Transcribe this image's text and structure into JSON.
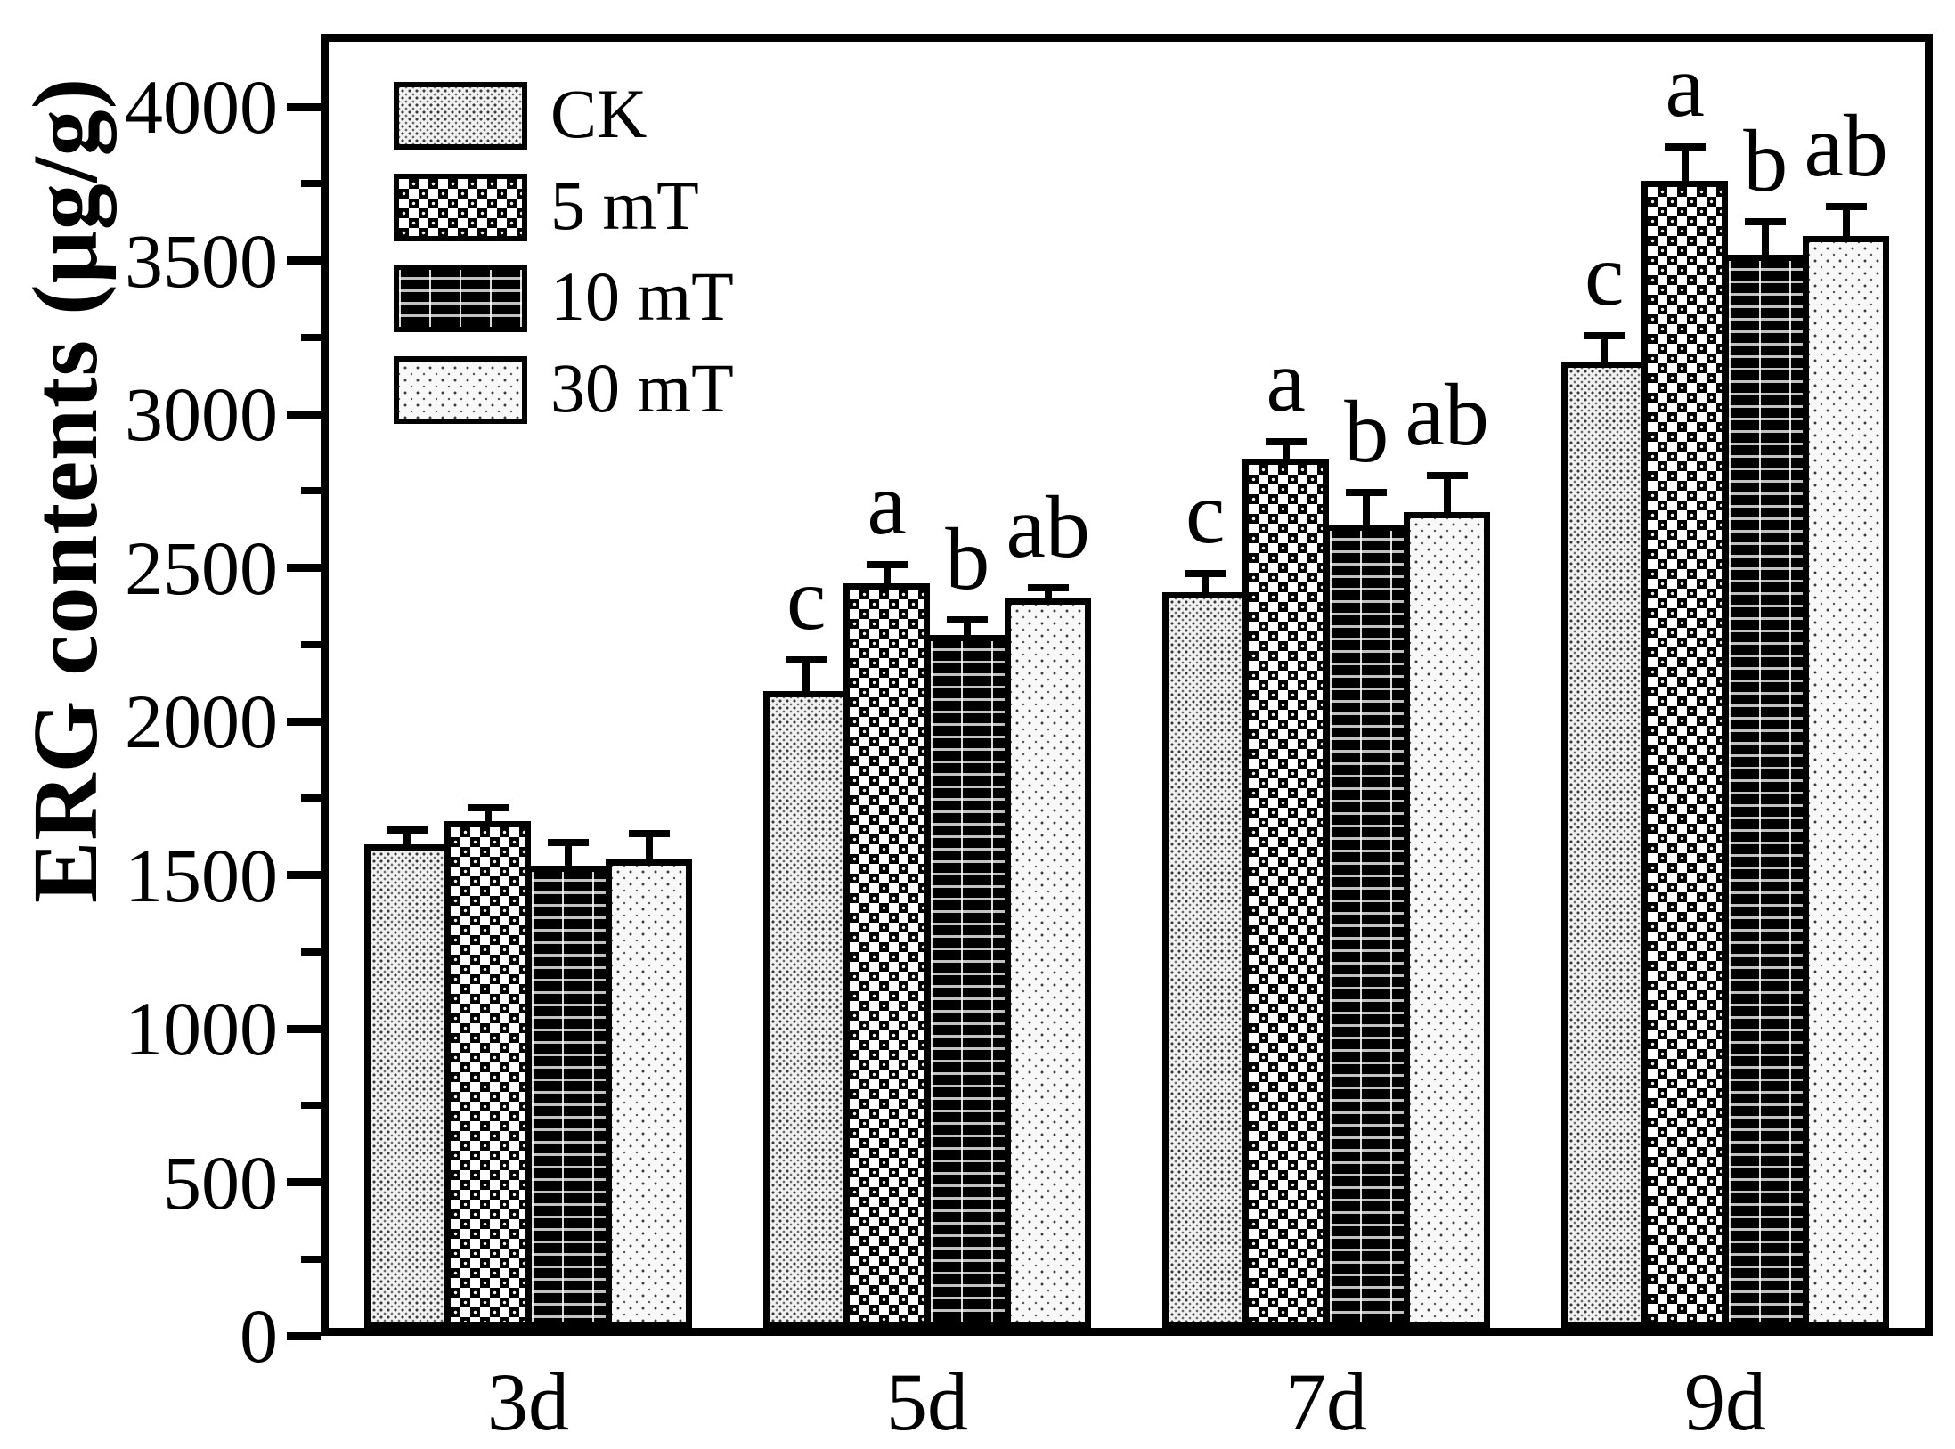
{
  "figure": {
    "background": "#ffffff",
    "ink": "#000000"
  },
  "chart_data": {
    "type": "bar",
    "title": "",
    "ylabel": "ERG contents (μg/g)",
    "xlabel": "",
    "categories": [
      "3d",
      "5d",
      "7d",
      "9d"
    ],
    "series": [
      {
        "name": "CK",
        "pattern": "fine-dots",
        "values": [
          1600,
          2100,
          2420,
          3170
        ],
        "errors_plus": [
          45,
          100,
          60,
          85
        ],
        "sig_letters": [
          "",
          "c",
          "c",
          "c"
        ]
      },
      {
        "name": "5 mT",
        "pattern": "checkerboard",
        "values": [
          1675,
          2450,
          2855,
          3760
        ],
        "errors_plus": [
          45,
          60,
          55,
          110
        ],
        "sig_letters": [
          "",
          "a",
          "a",
          "a"
        ]
      },
      {
        "name": "10 mT",
        "pattern": "horizontal-stripes",
        "values": [
          1530,
          2280,
          2640,
          3520
        ],
        "errors_plus": [
          75,
          50,
          105,
          105
        ],
        "sig_letters": [
          "",
          "b",
          "b",
          "b"
        ]
      },
      {
        "name": "30 mT",
        "pattern": "sparse-dots",
        "values": [
          1550,
          2400,
          2680,
          3580
        ],
        "errors_plus": [
          85,
          35,
          120,
          95
        ],
        "sig_letters": [
          "",
          "ab",
          "ab",
          "ab"
        ]
      }
    ],
    "y_axis": {
      "min": 0,
      "max": 4235,
      "major_tick_step": 500,
      "minor_tick_step": 250,
      "tick_labels": [
        "0",
        "500",
        "1000",
        "1500",
        "2000",
        "2500",
        "3000",
        "3500",
        "4000"
      ]
    },
    "x_axis": {
      "tick_labels": [
        "3d",
        "5d",
        "7d",
        "9d"
      ]
    },
    "legend": {
      "position": "top-left",
      "entries": [
        "CK",
        "5 mT",
        "10 mT",
        "30 mT"
      ]
    }
  }
}
